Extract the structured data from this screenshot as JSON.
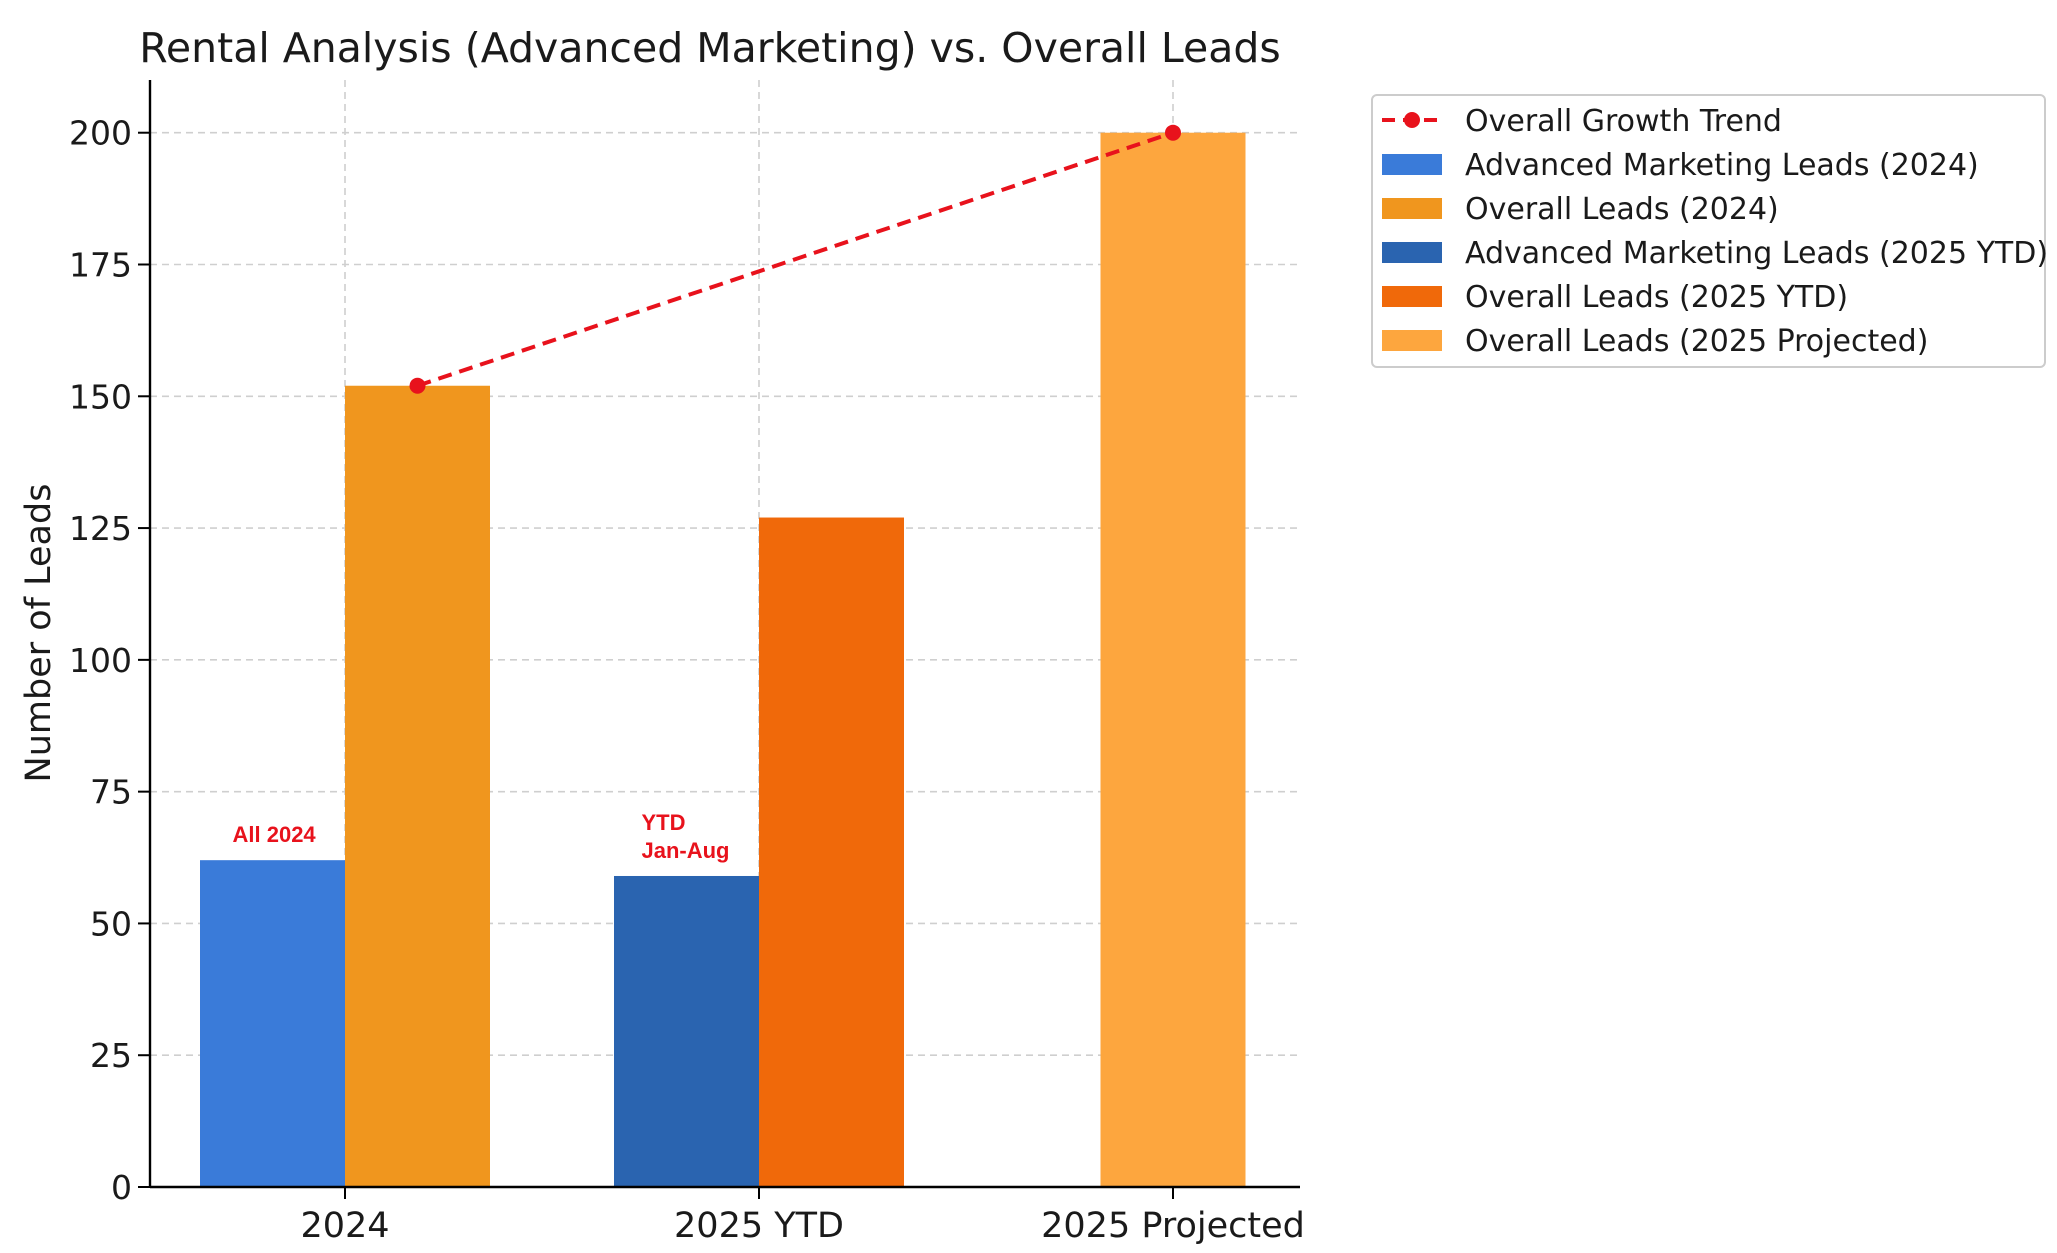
{
  "chart_data": {
    "type": "bar",
    "title": "Rental Analysis (Advanced Marketing) vs. Overall Leads",
    "xlabel": "",
    "ylabel": "Number of Leads",
    "ylim": [
      0,
      210
    ],
    "yticks": [
      0,
      25,
      50,
      75,
      100,
      125,
      150,
      175,
      200
    ],
    "grid": true,
    "legend_position": "outside-top-right",
    "categories": [
      "2024",
      "2025 YTD",
      "2025 Projected"
    ],
    "series": [
      {
        "name": "Advanced Marketing Leads (2024)",
        "kind": "bar",
        "color": "#3a7bd9",
        "category": "2024",
        "offset": "left",
        "value": 62
      },
      {
        "name": "Overall Leads (2024)",
        "kind": "bar",
        "color": "#f0961e",
        "category": "2024",
        "offset": "right",
        "value": 152
      },
      {
        "name": "Advanced Marketing Leads (2025 YTD)",
        "kind": "bar",
        "color": "#2a64b0",
        "category": "2025 YTD",
        "offset": "left",
        "value": 59
      },
      {
        "name": "Overall Leads (2025 YTD)",
        "kind": "bar",
        "color": "#f0690a",
        "category": "2025 YTD",
        "offset": "right",
        "value": 127
      },
      {
        "name": "Overall Leads (2025 Projected)",
        "kind": "bar",
        "color": "#fda63e",
        "category": "2025 Projected",
        "offset": "center",
        "value": 200
      }
    ],
    "trend": {
      "name": "Overall Growth Trend",
      "color": "#e8121c",
      "style": "dashed",
      "points": [
        {
          "category": "2024",
          "offset": "right",
          "value": 152
        },
        {
          "category": "2025 Projected",
          "offset": "center",
          "value": 200
        }
      ]
    },
    "annotations": [
      {
        "lines": [
          "All 2024"
        ],
        "category": "2024",
        "offset": "left",
        "value": 62
      },
      {
        "lines": [
          "YTD",
          "Jan-Aug"
        ],
        "category": "2025 YTD",
        "offset": "left",
        "value": 59
      }
    ],
    "legend": [
      {
        "label": "Overall Growth Trend",
        "marker": "line-dot",
        "color": "#e8121c"
      },
      {
        "label": "Advanced Marketing Leads (2024)",
        "marker": "patch",
        "color": "#3a7bd9"
      },
      {
        "label": "Overall Leads (2024)",
        "marker": "patch",
        "color": "#f0961e"
      },
      {
        "label": "Advanced Marketing Leads (2025 YTD)",
        "marker": "patch",
        "color": "#2a64b0"
      },
      {
        "label": "Overall Leads (2025 YTD)",
        "marker": "patch",
        "color": "#f0690a"
      },
      {
        "label": "Overall Leads (2025 Projected)",
        "marker": "patch",
        "color": "#fda63e"
      }
    ]
  }
}
